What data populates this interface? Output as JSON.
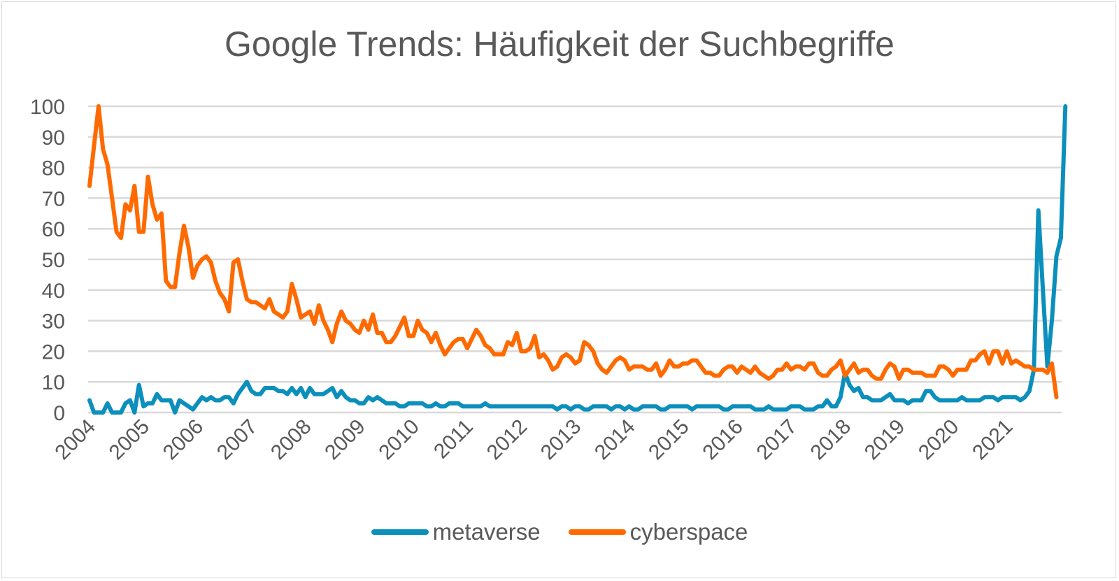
{
  "chart_data": {
    "type": "line",
    "title": "Google Trends: Häufigkeit der Suchbegriffe",
    "xlabel": "",
    "ylabel": "",
    "ylim": [
      0,
      100
    ],
    "yticks": [
      0,
      10,
      20,
      30,
      40,
      50,
      60,
      70,
      80,
      90,
      100
    ],
    "x_start": "2004-01",
    "x_frequency": "monthly",
    "xtick_labels": [
      "2004",
      "2005",
      "2006",
      "2007",
      "2008",
      "2009",
      "2010",
      "2011",
      "2012",
      "2013",
      "2014",
      "2015",
      "2016",
      "2017",
      "2018",
      "2019",
      "2020",
      "2021"
    ],
    "grid": true,
    "legend_position": "bottom",
    "series": [
      {
        "name": "metaverse",
        "color": "#0b8fbc",
        "values": [
          4,
          0,
          0,
          0,
          3,
          0,
          0,
          0,
          3,
          4,
          0,
          9,
          2,
          3,
          3,
          6,
          4,
          4,
          4,
          0,
          4,
          3,
          2,
          1,
          3,
          5,
          4,
          5,
          4,
          4,
          5,
          5,
          3,
          6,
          8,
          10,
          7,
          6,
          6,
          8,
          8,
          8,
          7,
          7,
          6,
          8,
          6,
          8,
          5,
          8,
          6,
          6,
          6,
          7,
          8,
          5,
          7,
          5,
          4,
          4,
          3,
          3,
          5,
          4,
          5,
          4,
          3,
          3,
          3,
          2,
          2,
          3,
          3,
          3,
          3,
          2,
          2,
          3,
          2,
          2,
          3,
          3,
          3,
          2,
          2,
          2,
          2,
          2,
          3,
          2,
          2,
          2,
          2,
          2,
          2,
          2,
          2,
          2,
          2,
          2,
          2,
          2,
          2,
          2,
          1,
          2,
          2,
          1,
          2,
          2,
          1,
          1,
          2,
          2,
          2,
          2,
          1,
          2,
          2,
          1,
          2,
          1,
          1,
          2,
          2,
          2,
          2,
          1,
          1,
          2,
          2,
          2,
          2,
          2,
          1,
          2,
          2,
          2,
          2,
          2,
          2,
          1,
          1,
          2,
          2,
          2,
          2,
          2,
          1,
          1,
          1,
          2,
          1,
          1,
          1,
          1,
          2,
          2,
          2,
          1,
          1,
          1,
          2,
          2,
          4,
          2,
          2,
          5,
          13,
          9,
          7,
          8,
          5,
          5,
          4,
          4,
          4,
          5,
          6,
          4,
          4,
          4,
          3,
          4,
          4,
          4,
          7,
          7,
          5,
          4,
          4,
          4,
          4,
          4,
          5,
          4,
          4,
          4,
          4,
          5,
          5,
          5,
          4,
          5,
          5,
          5,
          5,
          4,
          5,
          7,
          14,
          66,
          40,
          15,
          30,
          51,
          57,
          100
        ]
      },
      {
        "name": "cyberspace",
        "color": "#ff6a00",
        "values": [
          74,
          87,
          100,
          86,
          81,
          70,
          59,
          57,
          68,
          66,
          74,
          59,
          59,
          77,
          68,
          63,
          65,
          43,
          41,
          41,
          52,
          61,
          54,
          44,
          48,
          50,
          51,
          49,
          43,
          39,
          37,
          33,
          49,
          50,
          43,
          37,
          36,
          36,
          35,
          34,
          37,
          33,
          32,
          31,
          33,
          42,
          37,
          31,
          32,
          33,
          29,
          35,
          30,
          27,
          23,
          29,
          33,
          30,
          29,
          27,
          26,
          30,
          27,
          32,
          26,
          26,
          23,
          23,
          25,
          28,
          31,
          25,
          25,
          30,
          27,
          26,
          23,
          26,
          22,
          19,
          21,
          23,
          24,
          24,
          21,
          24,
          27,
          25,
          22,
          21,
          19,
          19,
          19,
          23,
          22,
          26,
          20,
          20,
          21,
          25,
          18,
          19,
          17,
          14,
          15,
          18,
          19,
          18,
          16,
          17,
          23,
          22,
          20,
          16,
          14,
          13,
          15,
          17,
          18,
          17,
          14,
          15,
          15,
          15,
          14,
          14,
          16,
          12,
          14,
          17,
          15,
          15,
          16,
          16,
          17,
          17,
          15,
          13,
          13,
          12,
          12,
          14,
          15,
          15,
          13,
          15,
          14,
          13,
          15,
          13,
          12,
          11,
          12,
          14,
          14,
          16,
          14,
          15,
          15,
          14,
          16,
          16,
          13,
          12,
          12,
          14,
          15,
          17,
          12,
          14,
          16,
          13,
          14,
          14,
          12,
          11,
          11,
          14,
          16,
          15,
          11,
          14,
          14,
          13,
          13,
          13,
          12,
          12,
          12,
          15,
          15,
          14,
          12,
          14,
          14,
          14,
          17,
          17,
          19,
          20,
          16,
          20,
          20,
          16,
          20,
          16,
          17,
          16,
          15,
          15,
          14,
          14,
          14,
          13,
          16,
          5
        ]
      }
    ]
  }
}
